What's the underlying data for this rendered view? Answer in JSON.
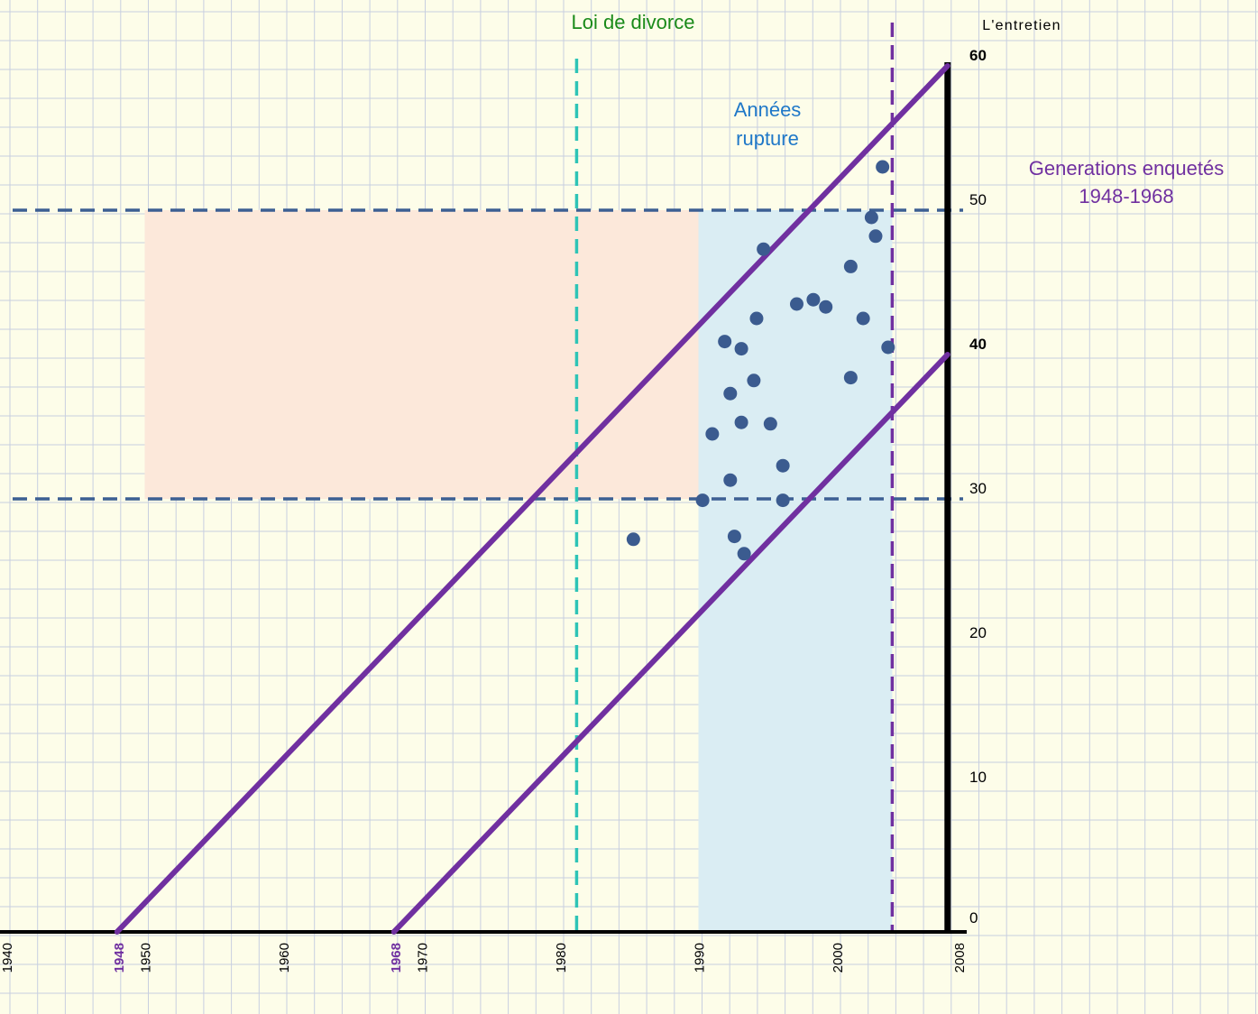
{
  "chart_data": {
    "type": "scatter",
    "title": "",
    "xlabel": "",
    "ylabel": "L'entretien",
    "xlim": [
      1940,
      2008
    ],
    "ylim": [
      0,
      60
    ],
    "grid": true,
    "x_ticks": [
      "1940",
      "1950",
      "1960",
      "1970",
      "1980",
      "1990",
      "2000"
    ],
    "x_end_label": "2008",
    "generation_ticks": [
      "1948",
      "1968"
    ],
    "y_ticks": [
      {
        "value": 0,
        "label": "0",
        "bold": false
      },
      {
        "value": 10,
        "label": "10",
        "bold": false
      },
      {
        "value": 20,
        "label": "20",
        "bold": false
      },
      {
        "value": 30,
        "label": "30",
        "bold": false
      },
      {
        "value": 40,
        "label": "40",
        "bold": true
      },
      {
        "value": 50,
        "label": "50",
        "bold": false
      },
      {
        "value": 60,
        "label": "60",
        "bold": true
      }
    ],
    "points": [
      {
        "x": 1985.3,
        "y": 27.2
      },
      {
        "x": 1990.3,
        "y": 29.9
      },
      {
        "x": 1991.0,
        "y": 34.5
      },
      {
        "x": 1991.9,
        "y": 40.9
      },
      {
        "x": 1992.3,
        "y": 37.3
      },
      {
        "x": 1992.3,
        "y": 31.3
      },
      {
        "x": 1992.6,
        "y": 27.4
      },
      {
        "x": 1993.1,
        "y": 35.3
      },
      {
        "x": 1993.1,
        "y": 40.4
      },
      {
        "x": 1993.3,
        "y": 26.2
      },
      {
        "x": 1994.0,
        "y": 38.2
      },
      {
        "x": 1994.2,
        "y": 42.5
      },
      {
        "x": 1994.7,
        "y": 47.3
      },
      {
        "x": 1995.2,
        "y": 35.2
      },
      {
        "x": 1996.1,
        "y": 32.3
      },
      {
        "x": 1996.1,
        "y": 29.9
      },
      {
        "x": 1997.1,
        "y": 43.5
      },
      {
        "x": 1998.3,
        "y": 43.8
      },
      {
        "x": 1999.2,
        "y": 43.3
      },
      {
        "x": 2001.0,
        "y": 38.4
      },
      {
        "x": 2001.0,
        "y": 46.1
      },
      {
        "x": 2001.9,
        "y": 42.5
      },
      {
        "x": 2002.5,
        "y": 49.5
      },
      {
        "x": 2002.8,
        "y": 48.2
      },
      {
        "x": 2003.3,
        "y": 53.0
      },
      {
        "x": 2003.7,
        "y": 40.5
      }
    ],
    "generation_lines": [
      {
        "name": "1948",
        "from": [
          1948,
          0
        ],
        "to": [
          2008,
          60
        ]
      },
      {
        "name": "1968",
        "from": [
          1968,
          0
        ],
        "to": [
          2008,
          40
        ]
      }
    ],
    "shaded_regions": [
      {
        "name": "orange",
        "x": [
          1950,
          1990
        ],
        "y": [
          30,
          50
        ],
        "color": "#fce8da"
      },
      {
        "name": "blue",
        "x": [
          1990,
          2004
        ],
        "y": [
          0,
          50
        ],
        "color": "#daedf3"
      }
    ],
    "hlines": [
      30,
      50
    ],
    "vlines": [
      {
        "x": 1981.2,
        "y_top": 60.5,
        "color": "#2ec4b6"
      },
      {
        "x": 2004.0,
        "y_top": 63,
        "color": "#7030a0"
      }
    ],
    "annotations": {
      "divorce_law": "Loi de divorce",
      "rupture_line1": "Années",
      "rupture_line2": "rupture",
      "generations_line1": "Generations enquetés",
      "generations_line2": "1948-1968"
    }
  },
  "colors": {
    "background": "#fdfde9",
    "grid": "#c8cfe0",
    "point": "#3b5b8f",
    "hline": "#3c5f93",
    "purple": "#7030a0",
    "teal": "#2ec4b6",
    "green": "#1a8a1a",
    "blue_text": "#1f78c8"
  }
}
